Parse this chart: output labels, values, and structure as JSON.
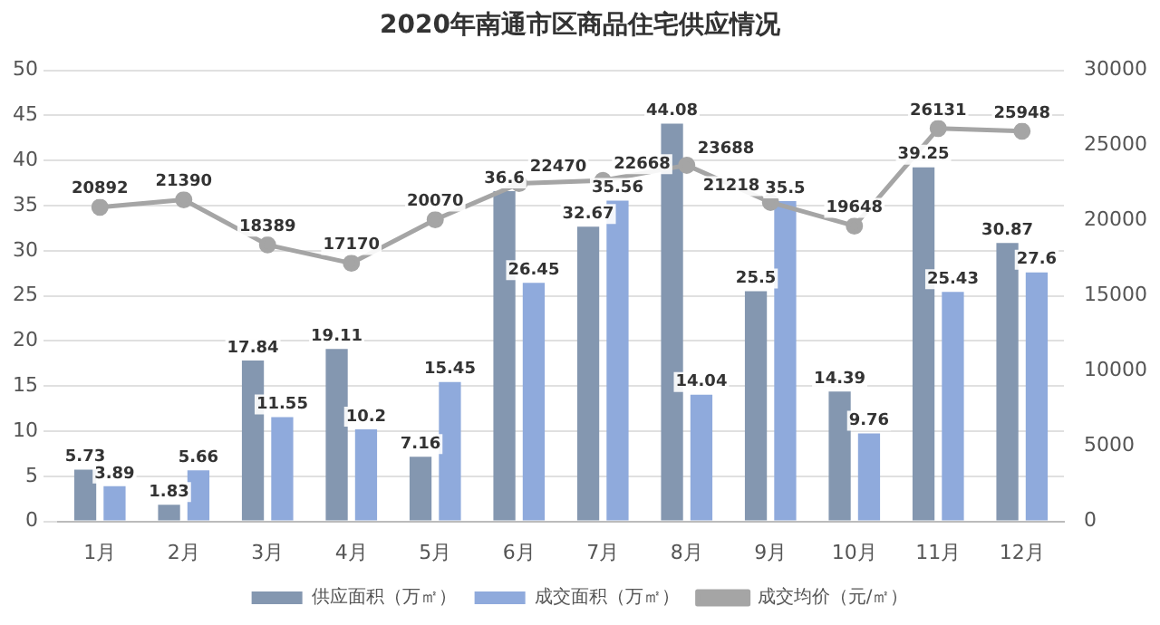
{
  "chart_data": {
    "type": "bar",
    "title": "2020年南通市区商品住宅供应情况",
    "categories": [
      "1月",
      "2月",
      "3月",
      "4月",
      "5月",
      "6月",
      "7月",
      "8月",
      "9月",
      "10月",
      "11月",
      "12月"
    ],
    "series": [
      {
        "name": "供应面积（万㎡）",
        "color": "#8497b0",
        "values": [
          5.73,
          1.83,
          17.84,
          19.11,
          7.16,
          36.6,
          32.67,
          44.08,
          25.5,
          14.39,
          39.25,
          30.87
        ]
      },
      {
        "name": "成交面积（万㎡）",
        "color": "#8faadc",
        "values": [
          3.89,
          5.66,
          11.55,
          10.2,
          15.45,
          26.45,
          35.56,
          14.04,
          35.5,
          9.76,
          25.43,
          27.6
        ]
      },
      {
        "name": "成交均价（元/㎡）",
        "type": "line",
        "axis": "y2",
        "color": "#a5a5a5",
        "marker": "circle",
        "values": [
          20892,
          21390,
          18389,
          17170,
          20070,
          22470,
          22668,
          23688,
          21218,
          19648,
          26131,
          25948
        ]
      }
    ],
    "ylim": [
      0,
      50
    ],
    "yticks": [
      0,
      5,
      10,
      15,
      20,
      25,
      30,
      35,
      40,
      45,
      50
    ],
    "y2lim": [
      0,
      30000
    ],
    "y2ticks": [
      0,
      5000,
      10000,
      15000,
      20000,
      25000,
      30000
    ],
    "grid": "y",
    "legend": "bottom",
    "data_labels": true
  }
}
